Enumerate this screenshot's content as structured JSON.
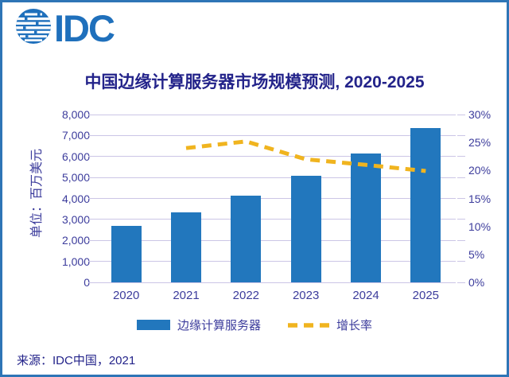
{
  "window": {
    "border_color": "#2E75B6",
    "background": "#FFFFFF"
  },
  "logo": {
    "text": "IDC",
    "color": "#1F70BC",
    "icon": "striped-globe-icon"
  },
  "chart_data": {
    "type": "bar",
    "title": "中国边缘计算服务器市场规模预测, 2020-2025",
    "title_color": "#23238A",
    "categories": [
      "2020",
      "2021",
      "2022",
      "2023",
      "2024",
      "2025"
    ],
    "series": [
      {
        "name": "边缘计算服务器",
        "kind": "bar",
        "axis": "left",
        "color": "#2277BD",
        "values": [
          2700,
          3350,
          4150,
          5100,
          6150,
          7350
        ]
      },
      {
        "name": "增长率",
        "kind": "dashed-line",
        "axis": "right",
        "color": "#F0B41F",
        "values": [
          null,
          24.0,
          25.2,
          22.0,
          21.0,
          19.9
        ]
      }
    ],
    "axis_left": {
      "label": "单位：百万美元",
      "min": 0,
      "max": 8000,
      "ticks": [
        "8,000",
        "7,000",
        "6,000",
        "5,000",
        "4,000",
        "3,000",
        "2,000",
        "1,000",
        "0"
      ]
    },
    "axis_right": {
      "min": 0,
      "max": 30,
      "ticks": [
        "30%",
        "25%",
        "20%",
        "15%",
        "10%",
        "5%",
        "0%"
      ]
    },
    "grid": true,
    "gridline_color": "#CBC5E6",
    "text_color": "#3C3C9C",
    "legend_position": "bottom"
  },
  "source": {
    "text": "来源：IDC中国，2021"
  }
}
